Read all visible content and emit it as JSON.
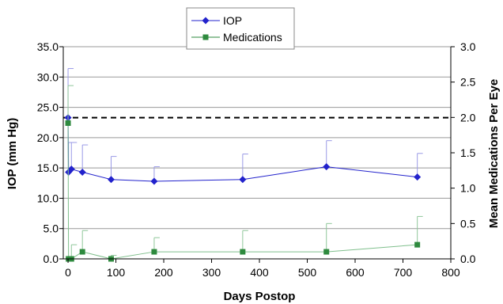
{
  "chart_data": {
    "type": "line",
    "xlabel": "Days Postop",
    "ylabel_left": "IOP (mm Hg)",
    "ylabel_right": "Mean Medications Per Eye",
    "xlim": [
      -10,
      800
    ],
    "x_ticks": [
      0,
      100,
      200,
      300,
      400,
      500,
      600,
      700,
      800
    ],
    "ylim_left": [
      0,
      35
    ],
    "y_ticks_left": [
      "0.0",
      "5.0",
      "10.0",
      "15.0",
      "20.0",
      "25.0",
      "30.0",
      "35.0"
    ],
    "ylim_right": [
      0,
      3
    ],
    "y_ticks_right": [
      "0.0",
      "0.5",
      "1.0",
      "1.5",
      "2.0",
      "2.5",
      "3.0"
    ],
    "grid": "horizontal",
    "legend": "top-center",
    "reference_line": {
      "axis": "left",
      "y": 23.3,
      "style": "dashed"
    },
    "series": [
      {
        "name": "IOP",
        "axis": "left",
        "color": "#2222cc",
        "marker": "diamond",
        "x": [
          0,
          1,
          7,
          30,
          90,
          180,
          365,
          540,
          730
        ],
        "y": [
          23.3,
          14.3,
          14.8,
          14.3,
          13.1,
          12.8,
          13.1,
          15.2,
          13.5
        ],
        "err_upper": [
          31.4,
          19.2,
          19.2,
          18.8,
          16.9,
          15.2,
          17.3,
          19.5,
          17.4
        ]
      },
      {
        "name": "Medications",
        "axis": "right",
        "color": "#2e8a3e",
        "marker": "square",
        "x": [
          0,
          1,
          7,
          30,
          90,
          180,
          365,
          540,
          730
        ],
        "y": [
          1.92,
          0.0,
          0.0,
          0.1,
          0.0,
          0.1,
          0.1,
          0.1,
          0.2
        ],
        "err_upper": [
          2.45,
          0.0,
          0.2,
          0.4,
          0.05,
          0.3,
          0.4,
          0.5,
          0.6
        ]
      }
    ]
  }
}
